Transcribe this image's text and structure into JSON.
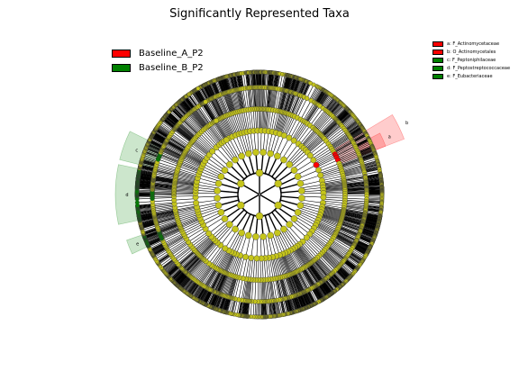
{
  "title": "Significantly Represented Taxa",
  "colors": {
    "enriched_a": "#ff0000",
    "enriched_b": "#008000",
    "neutral": "#c5c51c",
    "edge": "#000000"
  },
  "legend": [
    {
      "label": "Baseline_A_P2",
      "color": "#ff0000"
    },
    {
      "label": "Baseline_B_P2",
      "color": "#008000"
    }
  ],
  "taxa_legend": [
    {
      "label": "a: F_Actinomycetaceae",
      "color": "#ff0000"
    },
    {
      "label": "b: O_Actinomycetales",
      "color": "#ff0000"
    },
    {
      "label": "c: F_Peptoniphilaceae",
      "color": "#008000"
    },
    {
      "label": "d: F_Peptostreptococcaceae",
      "color": "#008000"
    },
    {
      "label": "e: F_Eubacteriaceae",
      "color": "#008000"
    }
  ],
  "clade_labels": [
    {
      "text": "a",
      "color": "#ff0000"
    },
    {
      "text": "b",
      "color": "#ff0000"
    },
    {
      "text": "c",
      "color": "#008000"
    },
    {
      "text": "d",
      "color": "#008000"
    },
    {
      "text": "e",
      "color": "#008000"
    }
  ]
}
